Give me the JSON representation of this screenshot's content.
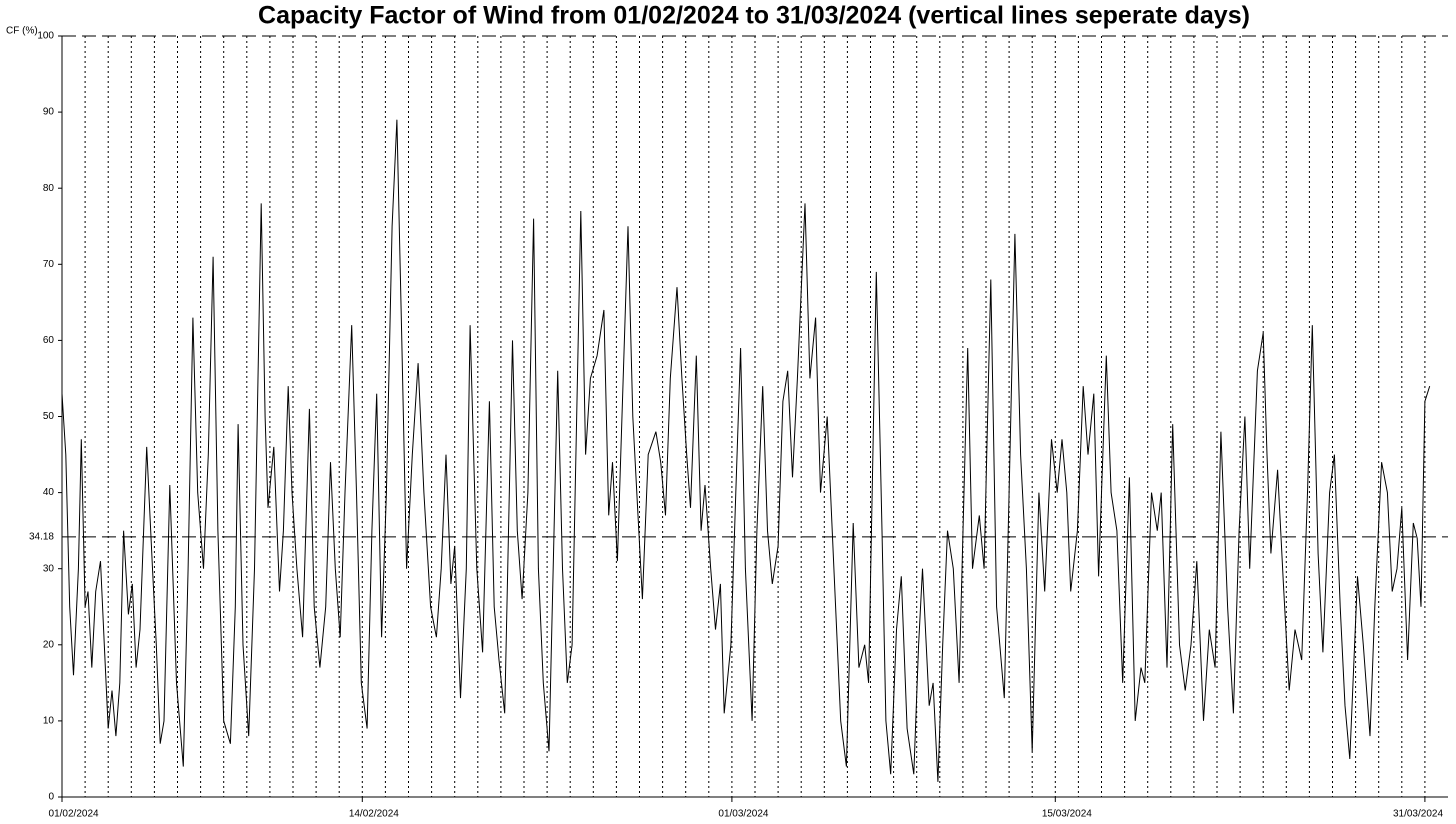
{
  "chart_data": {
    "type": "line",
    "title": "Capacity Factor of Wind from 01/02/2024 to 31/03/2024 (vertical lines seperate days)",
    "ylabel": "CF (%)",
    "color": "#000000",
    "xlim": [
      0,
      1440
    ],
    "xticks": [
      {
        "value": 0,
        "label": "01/02/2024"
      },
      {
        "value": 312,
        "label": "14/02/2024"
      },
      {
        "value": 696,
        "label": "01/03/2024"
      },
      {
        "value": 1032,
        "label": "15/03/2024"
      },
      {
        "value": 1416,
        "label": "31/03/2024"
      }
    ],
    "day_lines": [
      24,
      48,
      72,
      96,
      120,
      144,
      168,
      192,
      216,
      240,
      264,
      288,
      312,
      336,
      360,
      384,
      408,
      432,
      456,
      480,
      504,
      528,
      552,
      576,
      600,
      624,
      648,
      672,
      696,
      720,
      744,
      768,
      792,
      816,
      840,
      864,
      888,
      912,
      936,
      960,
      984,
      1008,
      1032,
      1056,
      1080,
      1104,
      1128,
      1152,
      1176,
      1200,
      1224,
      1248,
      1272,
      1296,
      1320,
      1344,
      1368,
      1392,
      1416
    ],
    "ylim": [
      0,
      100
    ],
    "yticks": [
      0,
      10,
      20,
      30,
      40,
      50,
      60,
      70,
      80,
      90,
      100
    ],
    "reference_line": 34.18,
    "x": [
      0,
      4,
      8,
      12,
      17,
      20,
      24,
      27,
      31,
      35,
      40,
      44,
      48,
      52,
      56,
      60,
      64,
      69,
      73,
      77,
      81,
      88,
      94,
      98,
      102,
      106,
      112,
      119,
      126,
      131,
      136,
      141,
      147,
      152,
      157,
      162,
      168,
      175,
      180,
      183,
      188,
      194,
      200,
      207,
      211,
      214,
      220,
      226,
      230,
      235,
      239,
      244,
      250,
      257,
      262,
      268,
      274,
      279,
      284,
      289,
      294,
      301,
      306,
      311,
      317,
      322,
      327,
      332,
      337,
      343,
      348,
      353,
      358,
      364,
      370,
      376,
      383,
      389,
      394,
      399,
      404,
      408,
      414,
      420,
      424,
      431,
      437,
      444,
      449,
      454,
      460,
      468,
      473,
      478,
      484,
      490,
      495,
      500,
      506,
      515,
      520,
      525,
      530,
      539,
      544,
      549,
      556,
      563,
      568,
      572,
      577,
      588,
      593,
      598,
      603,
      609,
      617,
      622,
      627,
      632,
      639,
      644,
      649,
      653,
      659,
      664,
      668,
      674,
      679,
      684,
      688,
      695,
      700,
      705,
      710,
      717,
      722,
      728,
      733,
      738,
      744,
      749,
      754,
      759,
      764,
      772,
      777,
      783,
      788,
      795,
      802,
      809,
      815,
      822,
      828,
      834,
      838,
      846,
      852,
      856,
      861,
      867,
      872,
      878,
      885,
      890,
      894,
      901,
      905,
      910,
      915,
      920,
      926,
      932,
      941,
      946,
      953,
      958,
      965,
      971,
      979,
      984,
      990,
      996,
      1002,
      1008,
      1015,
      1021,
      1028,
      1034,
      1039,
      1044,
      1048,
      1055,
      1061,
      1066,
      1072,
      1077,
      1085,
      1090,
      1096,
      1102,
      1109,
      1115,
      1121,
      1125,
      1132,
      1138,
      1142,
      1148,
      1154,
      1161,
      1167,
      1173,
      1179,
      1186,
      1192,
      1198,
      1204,
      1211,
      1217,
      1223,
      1229,
      1234,
      1242,
      1248,
      1252,
      1256,
      1263,
      1269,
      1275,
      1281,
      1288,
      1294,
      1299,
      1305,
      1310,
      1317,
      1322,
      1328,
      1333,
      1338,
      1346,
      1352,
      1359,
      1364,
      1371,
      1377,
      1382,
      1387,
      1392,
      1398,
      1404,
      1408,
      1412,
      1416,
      1421
    ],
    "values": [
      53,
      45,
      25,
      16,
      30,
      47,
      25,
      27,
      17,
      27,
      31,
      20,
      9,
      14,
      8,
      15,
      35,
      24,
      28,
      17,
      22,
      46,
      30,
      20,
      7,
      10,
      41,
      15,
      4,
      30,
      63,
      40,
      30,
      45,
      71,
      35,
      10,
      7,
      25,
      49,
      20,
      8,
      30,
      78,
      50,
      38,
      46,
      27,
      35,
      54,
      40,
      30,
      21,
      51,
      25,
      17,
      25,
      44,
      30,
      21,
      40,
      62,
      40,
      15,
      9,
      35,
      53,
      21,
      40,
      75,
      89,
      60,
      30,
      45,
      57,
      40,
      25,
      21,
      30,
      45,
      28,
      33,
      13,
      30,
      62,
      30,
      19,
      52,
      25,
      18,
      11,
      60,
      35,
      26,
      40,
      76,
      30,
      15,
      6,
      56,
      30,
      15,
      20,
      77,
      45,
      55,
      58,
      64,
      37,
      44,
      31,
      75,
      50,
      38,
      26,
      45,
      48,
      44,
      37,
      55,
      67,
      55,
      45,
      38,
      58,
      35,
      41,
      30,
      22,
      28,
      11,
      20,
      40,
      59,
      30,
      10,
      35,
      54,
      35,
      28,
      33,
      52,
      56,
      42,
      55,
      78,
      55,
      63,
      40,
      50,
      30,
      10,
      4,
      36,
      17,
      20,
      15,
      69,
      35,
      10,
      3,
      22,
      29,
      9,
      3,
      20,
      30,
      12,
      15,
      2,
      20,
      35,
      30,
      15,
      59,
      30,
      37,
      30,
      68,
      25,
      13,
      40,
      74,
      45,
      30,
      6,
      40,
      27,
      47,
      40,
      47,
      40,
      27,
      35,
      54,
      45,
      53,
      29,
      58,
      40,
      35,
      15,
      42,
      10,
      17,
      15,
      40,
      35,
      40,
      17,
      49,
      20,
      14,
      20,
      31,
      10,
      22,
      17,
      48,
      25,
      11,
      35,
      50,
      30,
      56,
      61,
      45,
      32,
      43,
      28,
      14,
      22,
      18,
      40,
      62,
      32,
      19,
      40,
      45,
      25,
      12,
      5,
      29,
      20,
      8,
      25,
      44,
      40,
      27,
      30,
      38,
      18,
      36,
      34,
      25,
      52,
      54
    ]
  }
}
